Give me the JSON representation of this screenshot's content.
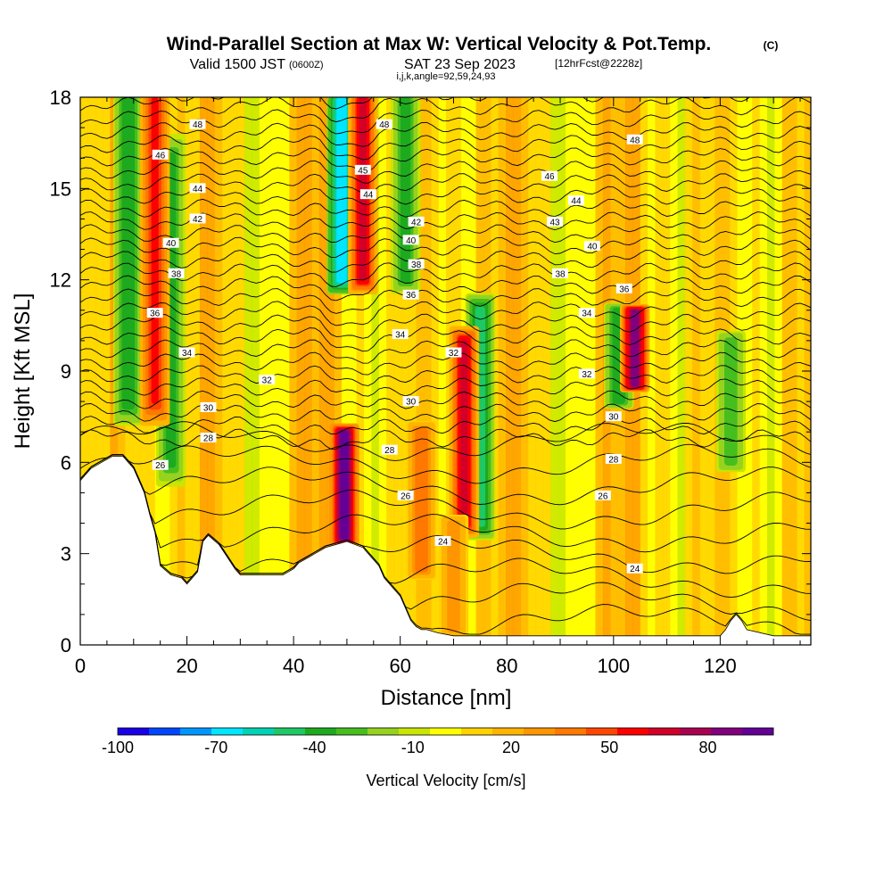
{
  "chart_data": {
    "type": "heatmap",
    "title": "Wind-Parallel Section at Max W: Vertical Velocity & Pot.Temp.",
    "title_units": "(C)",
    "subtitle_main": "Valid 1500 JST",
    "subtitle_utc": "(0600Z)",
    "subtitle_date": "SAT 23 Sep 2023",
    "subtitle_fcst": "[12hrFcst@2228z]",
    "subtitle_indices": "i,j,k,angle=92,59,24,93",
    "xlabel": "Distance [nm]",
    "ylabel": "Height [Kft MSL]",
    "xlim": [
      0,
      137
    ],
    "ylim": [
      0,
      18
    ],
    "x_ticks": [
      0,
      20,
      40,
      60,
      80,
      100,
      120
    ],
    "y_ticks": [
      0,
      3,
      6,
      9,
      12,
      15,
      18
    ],
    "colorbar": {
      "label": "Vertical Velocity [cm/s]",
      "range": [
        -100,
        100
      ],
      "tick_values": [
        -100,
        -70,
        -40,
        -10,
        20,
        50,
        80
      ],
      "tick_labels": [
        "-100",
        "-70",
        "-40",
        "-10",
        "20",
        "50",
        "80"
      ],
      "colors": [
        "#1a00e8",
        "#0046ff",
        "#0096ff",
        "#00e6ff",
        "#00d2b4",
        "#1ec864",
        "#1eaa1e",
        "#46be1e",
        "#96d21e",
        "#c8e600",
        "#ffff00",
        "#ffd200",
        "#ffb400",
        "#ff9600",
        "#ff7800",
        "#ff4600",
        "#ff0000",
        "#d20028",
        "#aa0050",
        "#82007d",
        "#640096"
      ]
    },
    "terrain_profile": {
      "x": [
        0,
        1,
        2,
        4,
        6,
        8,
        10,
        11,
        12,
        13,
        14,
        15,
        17,
        19,
        20,
        22,
        23,
        24,
        26,
        29,
        30,
        33,
        36,
        38,
        40,
        41,
        42,
        43,
        44,
        46,
        50,
        53,
        54,
        55,
        56,
        57,
        58,
        59,
        60,
        61,
        62,
        63,
        64,
        65,
        67,
        70,
        74,
        80,
        90,
        100,
        110,
        120,
        121,
        122,
        123,
        124,
        125,
        130,
        137
      ],
      "y": [
        5.4,
        5.6,
        5.8,
        6.0,
        6.2,
        6.2,
        5.8,
        5.4,
        5.0,
        4.3,
        3.7,
        2.6,
        2.3,
        2.2,
        2.0,
        2.4,
        3.4,
        3.6,
        3.3,
        2.5,
        2.3,
        2.3,
        2.3,
        2.3,
        2.5,
        2.7,
        2.8,
        2.9,
        3.0,
        3.2,
        3.4,
        3.2,
        3.0,
        2.8,
        2.6,
        2.2,
        2.0,
        1.8,
        1.6,
        1.2,
        0.8,
        0.6,
        0.5,
        0.5,
        0.4,
        0.3,
        0.3,
        0.3,
        0.3,
        0.3,
        0.3,
        0.3,
        0.5,
        0.8,
        1.0,
        0.8,
        0.5,
        0.3,
        0.3
      ]
    },
    "updrafts": [
      {
        "x": 14,
        "y_bottom": 8,
        "y_top": 18,
        "peak_w": 60
      },
      {
        "x": 53,
        "y_bottom": 12,
        "y_top": 18,
        "peak_w": 70
      },
      {
        "x": 49.5,
        "y_bottom": 3.5,
        "y_top": 7,
        "peak_w": 100
      },
      {
        "x": 64,
        "y_bottom": 2.5,
        "y_top": 7,
        "peak_w": 45
      },
      {
        "x": 72,
        "y_bottom": 4,
        "y_top": 10,
        "peak_w": 70
      },
      {
        "x": 104,
        "y_bottom": 8.5,
        "y_top": 11,
        "peak_w": 90
      },
      {
        "x": 70,
        "y_bottom": 0.5,
        "y_top": 4,
        "peak_w": 35
      }
    ],
    "downdrafts": [
      {
        "x": 49,
        "y_bottom": 12,
        "y_top": 18,
        "peak_w": -75
      },
      {
        "x": 9,
        "y_bottom": 8,
        "y_top": 18,
        "peak_w": -45
      },
      {
        "x": 17,
        "y_bottom": 6,
        "y_top": 16,
        "peak_w": -40
      },
      {
        "x": 61,
        "y_bottom": 12,
        "y_top": 18,
        "peak_w": -40
      },
      {
        "x": 75,
        "y_bottom": 4,
        "y_top": 11,
        "peak_w": -55
      },
      {
        "x": 101,
        "y_bottom": 8,
        "y_top": 11,
        "peak_w": -45
      },
      {
        "x": 122,
        "y_bottom": 6,
        "y_top": 10,
        "peak_w": -35
      }
    ],
    "contour_labels": [
      {
        "text": "48",
        "x": 22,
        "y": 17.1
      },
      {
        "text": "48",
        "x": 57,
        "y": 17.1
      },
      {
        "text": "48",
        "x": 104,
        "y": 16.6
      },
      {
        "text": "46",
        "x": 15,
        "y": 16.1
      },
      {
        "text": "45",
        "x": 53,
        "y": 15.6
      },
      {
        "text": "46",
        "x": 88,
        "y": 15.4
      },
      {
        "text": "44",
        "x": 22,
        "y": 15.0
      },
      {
        "text": "44",
        "x": 54,
        "y": 14.8
      },
      {
        "text": "44",
        "x": 93,
        "y": 14.6
      },
      {
        "text": "42",
        "x": 22,
        "y": 14.0
      },
      {
        "text": "42",
        "x": 63,
        "y": 13.9
      },
      {
        "text": "43",
        "x": 89,
        "y": 13.9
      },
      {
        "text": "40",
        "x": 17,
        "y": 13.2
      },
      {
        "text": "40",
        "x": 62,
        "y": 13.3
      },
      {
        "text": "40",
        "x": 96,
        "y": 13.1
      },
      {
        "text": "38",
        "x": 18,
        "y": 12.2
      },
      {
        "text": "38",
        "x": 63,
        "y": 12.5
      },
      {
        "text": "38",
        "x": 90,
        "y": 12.2
      },
      {
        "text": "36",
        "x": 14,
        "y": 10.9
      },
      {
        "text": "36",
        "x": 62,
        "y": 11.5
      },
      {
        "text": "36",
        "x": 102,
        "y": 11.7
      },
      {
        "text": "34",
        "x": 20,
        "y": 9.6
      },
      {
        "text": "34",
        "x": 60,
        "y": 10.2
      },
      {
        "text": "34",
        "x": 95,
        "y": 10.9
      },
      {
        "text": "32",
        "x": 35,
        "y": 8.7
      },
      {
        "text": "32",
        "x": 70,
        "y": 9.6
      },
      {
        "text": "32",
        "x": 95,
        "y": 8.9
      },
      {
        "text": "30",
        "x": 24,
        "y": 7.8
      },
      {
        "text": "30",
        "x": 62,
        "y": 8.0
      },
      {
        "text": "30",
        "x": 100,
        "y": 7.5
      },
      {
        "text": "28",
        "x": 24,
        "y": 6.8
      },
      {
        "text": "28",
        "x": 58,
        "y": 6.4
      },
      {
        "text": "28",
        "x": 100,
        "y": 6.1
      },
      {
        "text": "26",
        "x": 15,
        "y": 5.9
      },
      {
        "text": "26",
        "x": 61,
        "y": 4.9
      },
      {
        "text": "26",
        "x": 98,
        "y": 4.9
      },
      {
        "text": "24",
        "x": 68,
        "y": 3.4
      },
      {
        "text": "24",
        "x": 104,
        "y": 2.5
      }
    ]
  }
}
